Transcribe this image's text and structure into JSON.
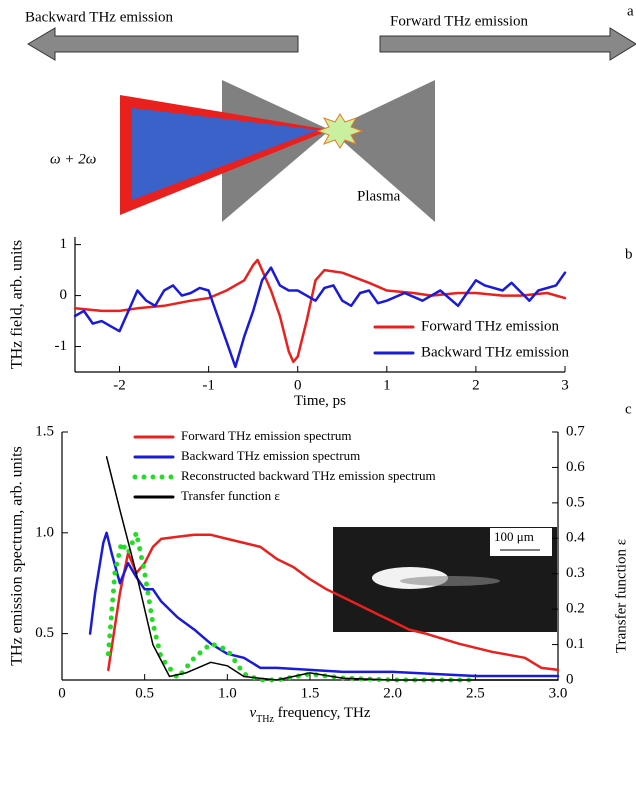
{
  "diagram": {
    "label": "a",
    "backward": "Backward THz emission",
    "forward": "Forward THz emission",
    "beam": "ω + 2ω",
    "plasma": "Plasma"
  },
  "chart_data": [
    {
      "type": "line",
      "label": "b",
      "xlabel": "Time, ps",
      "ylabel": "THz field, arb. units",
      "xlim": [
        -2.5,
        3
      ],
      "ylim": [
        -1.5,
        1.15
      ],
      "xticks": [
        -2,
        -1,
        0,
        1,
        2,
        3
      ],
      "yticks": [
        -1,
        0,
        1
      ],
      "legend": "lower right",
      "series": [
        {
          "name": "Forward THz emission",
          "color": "#e8211f",
          "x": [
            -2.5,
            -2.2,
            -2,
            -1.8,
            -1.5,
            -1.2,
            -1,
            -0.8,
            -0.6,
            -0.5,
            -0.45,
            -0.4,
            -0.3,
            -0.2,
            -0.1,
            -0.05,
            0,
            0.1,
            0.2,
            0.3,
            0.5,
            0.8,
            1,
            1.3,
            1.5,
            1.8,
            2,
            2.3,
            2.5,
            2.8,
            3
          ],
          "values": [
            -0.25,
            -0.3,
            -0.3,
            -0.25,
            -0.2,
            -0.1,
            -0.05,
            0.1,
            0.3,
            0.6,
            0.7,
            0.5,
            0.1,
            -0.4,
            -1.1,
            -1.3,
            -1.2,
            -0.5,
            0.3,
            0.5,
            0.45,
            0.25,
            0.1,
            0.05,
            0,
            0.05,
            0.05,
            0,
            0,
            0.05,
            -0.05
          ]
        },
        {
          "name": "Backward THz emission",
          "color": "#1a1adb",
          "x": [
            -2.5,
            -2.4,
            -2.3,
            -2.2,
            -2.1,
            -2,
            -1.9,
            -1.8,
            -1.7,
            -1.6,
            -1.5,
            -1.4,
            -1.3,
            -1.2,
            -1.1,
            -1,
            -0.9,
            -0.8,
            -0.7,
            -0.6,
            -0.5,
            -0.4,
            -0.3,
            -0.2,
            -0.1,
            0,
            0.1,
            0.2,
            0.3,
            0.4,
            0.5,
            0.6,
            0.7,
            0.8,
            0.9,
            1,
            1.2,
            1.4,
            1.5,
            1.6,
            1.8,
            1.9,
            2,
            2.1,
            2.3,
            2.4,
            2.6,
            2.7,
            2.9,
            3
          ],
          "values": [
            -0.4,
            -0.3,
            -0.55,
            -0.5,
            -0.6,
            -0.7,
            -0.3,
            0.1,
            -0.1,
            -0.2,
            0.1,
            0.2,
            0,
            0.05,
            0.15,
            0.1,
            -0.4,
            -0.9,
            -1.4,
            -0.8,
            -0.3,
            0.3,
            0.55,
            0.2,
            0.1,
            0.1,
            0,
            -0.1,
            0.15,
            0.2,
            -0.1,
            -0.2,
            0.05,
            0.1,
            -0.15,
            -0.1,
            0.05,
            -0.1,
            0,
            0.1,
            -0.2,
            0.05,
            0.3,
            0.2,
            0.1,
            0.25,
            -0.1,
            0.1,
            0.2,
            0.45
          ]
        }
      ]
    },
    {
      "type": "line",
      "label": "c",
      "xlabel_symbol": "ν",
      "xlabel_subscript": "THz",
      "xlabel": " frequency, THz",
      "ylabel": "THz emission spectrum, arb. units",
      "y2label": "Transfer function ε",
      "xlim": [
        0,
        3
      ],
      "ylim": [
        0.27,
        1.5
      ],
      "y2lim": [
        0,
        0.7
      ],
      "xticks": [
        0,
        0.5,
        {
          "value": 1,
          "label": "1.0"
        },
        1.5,
        {
          "value": 2,
          "label": "2.0"
        },
        2.5,
        {
          "value": 3,
          "label": "3.0"
        }
      ],
      "yticks": [
        0.5,
        {
          "value": 1,
          "label": "1.0"
        },
        1.5
      ],
      "y2ticks": [
        0,
        0.1,
        0.2,
        0.3,
        0.4,
        0.5,
        0.6,
        0.7
      ],
      "legend": "upper left",
      "inset_scale": "100 μm",
      "series": [
        {
          "name": "Forward THz emission spectrum",
          "color": "#e8211f",
          "style": "solid",
          "x": [
            0.28,
            0.35,
            0.4,
            0.45,
            0.5,
            0.55,
            0.6,
            0.7,
            0.8,
            0.9,
            1,
            1.1,
            1.2,
            1.3,
            1.4,
            1.5,
            1.6,
            1.7,
            1.8,
            1.9,
            2,
            2.1,
            2.2,
            2.4,
            2.6,
            2.8,
            2.9,
            3
          ],
          "values": [
            0.32,
            0.7,
            0.9,
            0.8,
            0.85,
            0.93,
            0.97,
            0.98,
            0.99,
            0.99,
            0.97,
            0.95,
            0.93,
            0.87,
            0.83,
            0.77,
            0.72,
            0.68,
            0.64,
            0.6,
            0.56,
            0.52,
            0.5,
            0.45,
            0.41,
            0.38,
            0.33,
            0.32
          ]
        },
        {
          "name": "Backward THz emission spectrum",
          "color": "#1a1adb",
          "style": "solid",
          "x": [
            0.17,
            0.2,
            0.25,
            0.27,
            0.3,
            0.35,
            0.4,
            0.45,
            0.5,
            0.55,
            0.6,
            0.7,
            0.8,
            0.9,
            1,
            1.1,
            1.2,
            1.3,
            1.5,
            1.7,
            2,
            2.5,
            3
          ],
          "values": [
            0.5,
            0.7,
            0.95,
            1,
            0.9,
            0.75,
            0.85,
            0.78,
            0.72,
            0.72,
            0.66,
            0.58,
            0.52,
            0.45,
            0.4,
            0.38,
            0.33,
            0.33,
            0.32,
            0.31,
            0.31,
            0.29,
            0.29
          ]
        },
        {
          "name": "Reconstructed backward THz emission spectrum",
          "color": "#22dd22",
          "style": "dotted",
          "x": [
            0.28,
            0.32,
            0.36,
            0.4,
            0.45,
            0.5,
            0.55,
            0.6,
            0.7,
            0.8,
            0.9,
            1,
            1.1,
            1.2,
            1.3,
            1.5,
            1.7,
            2,
            2.5
          ],
          "values": [
            0.4,
            0.8,
            0.95,
            0.9,
            1,
            0.8,
            0.55,
            0.38,
            0.28,
            0.38,
            0.45,
            0.42,
            0.3,
            0.27,
            0.27,
            0.3,
            0.28,
            0.27,
            0.27
          ]
        },
        {
          "name": "Transfer function ε",
          "color": "#000000",
          "style": "solid",
          "axis": "y2",
          "x": [
            0.27,
            0.35,
            0.45,
            0.55,
            0.65,
            0.75,
            0.9,
            1,
            1.1,
            1.3,
            1.5,
            1.7,
            2,
            3
          ],
          "values": [
            0.63,
            0.48,
            0.3,
            0.1,
            0.01,
            0.02,
            0.05,
            0.04,
            0.01,
            0,
            0.02,
            0.005,
            0,
            0
          ]
        }
      ]
    }
  ]
}
